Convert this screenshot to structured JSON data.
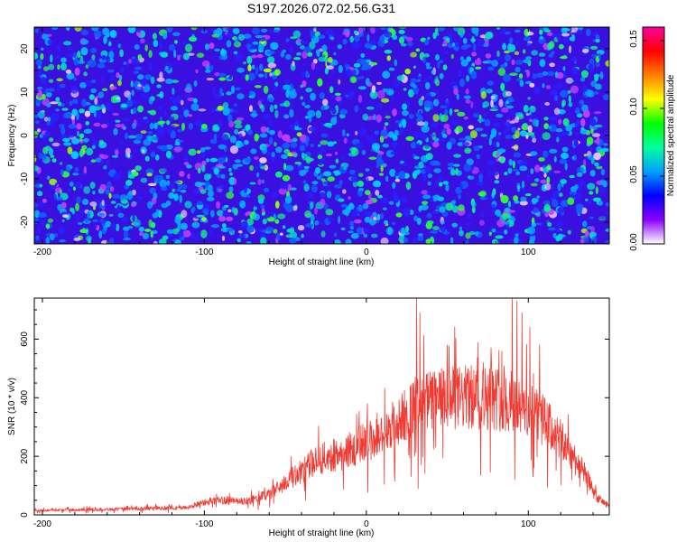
{
  "title": "S197.2026.072.02.56.G31",
  "colors": {
    "line": "#f03a32",
    "axis": "#000000",
    "background": "#ffffff"
  },
  "chart_data": [
    {
      "type": "heatmap",
      "xlabel": "Height of straight line (km)",
      "ylabel": "Frequency (Hz)",
      "xlim": [
        -205,
        150
      ],
      "ylim": [
        -25,
        25
      ],
      "x_ticks": [
        -200,
        -100,
        0,
        100
      ],
      "x_tick_labels": [
        "-200",
        "-100",
        "0",
        "100"
      ],
      "y_ticks": [
        -20,
        -10,
        0,
        10,
        20
      ],
      "y_tick_labels": [
        "-20",
        "-10",
        "0",
        "10",
        "20"
      ],
      "colorbar": {
        "label": "Normalized spectral amplitude",
        "range": [
          0,
          0.16
        ],
        "ticks": [
          0,
          0.05,
          0.1,
          0.15
        ],
        "tick_labels": [
          "0.00",
          "0.05",
          "0.10",
          "0.15"
        ],
        "colormap": [
          "#ffffff",
          "#8a00ff",
          "#0000ff",
          "#00a0ff",
          "#00ffa0",
          "#00ff00",
          "#ffff00",
          "#ff8000",
          "#ff0000",
          "#ff00a0"
        ]
      }
    },
    {
      "type": "line",
      "xlabel": "Height of straight line (km)",
      "ylabel": "SNR (10 * v/v)",
      "xlim": [
        -205,
        150
      ],
      "ylim": [
        0,
        740
      ],
      "x_ticks": [
        -200,
        -100,
        0,
        100
      ],
      "x_tick_labels": [
        "-200",
        "-100",
        "0",
        "100"
      ],
      "y_ticks": [
        0,
        200,
        400,
        600
      ],
      "y_tick_labels": [
        "0",
        "200",
        "400",
        "600"
      ],
      "envelope_x": [
        -205,
        -150,
        -110,
        -100,
        -90,
        -75,
        -60,
        -45,
        -30,
        -15,
        0,
        15,
        25,
        40,
        60,
        80,
        95,
        110,
        125,
        135,
        142,
        150
      ],
      "envelope_y": [
        15,
        20,
        25,
        45,
        50,
        45,
        70,
        130,
        190,
        210,
        250,
        280,
        350,
        390,
        400,
        400,
        370,
        320,
        220,
        140,
        60,
        30
      ],
      "spikes": [
        {
          "x": 31,
          "y": 740
        },
        {
          "x": 32,
          "y": 90
        },
        {
          "x": 33,
          "y": 690
        },
        {
          "x": 50,
          "y": 580
        },
        {
          "x": 77,
          "y": 570
        },
        {
          "x": 90,
          "y": 745
        },
        {
          "x": 93,
          "y": 730
        },
        {
          "x": 96,
          "y": 690
        },
        {
          "x": 101,
          "y": 640
        },
        {
          "x": 103,
          "y": 130
        },
        {
          "x": 107,
          "y": 580
        }
      ]
    }
  ]
}
